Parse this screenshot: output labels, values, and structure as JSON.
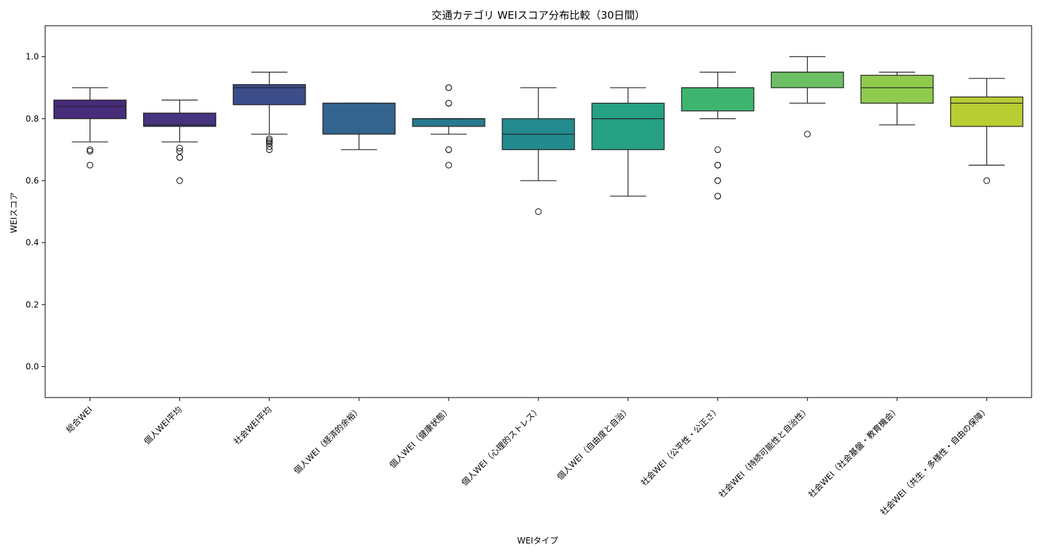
{
  "chart_data": {
    "type": "boxplot",
    "title": "交通カテゴリ WEIスコア分布比較（30日間）",
    "xlabel": "WEIタイプ",
    "ylabel": "WEIスコア",
    "ylim": [
      -0.1,
      1.1
    ],
    "yticks": [
      "0.0",
      "0.2",
      "0.4",
      "0.6",
      "0.8",
      "1.0"
    ],
    "grid": false,
    "legend": "none",
    "categories": [
      "総合WEI",
      "個人WEI平均",
      "社会WEI平均",
      "個人WEI（経済的余裕）",
      "個人WEI（健康状態）",
      "個人WEI（心理的ストレス）",
      "個人WEI（自由度と自治）",
      "社会WEI（公平性・公正さ）",
      "社会WEI（持続可能性と自治性）",
      "社会WEI（社会基盤・教育機会）",
      "社会WEI（共生・多様性・自由の保障）"
    ],
    "boxes": [
      {
        "color": "#472c7a",
        "whisker_low": 0.725,
        "q1": 0.8,
        "median": 0.84,
        "q3": 0.86,
        "whisker_high": 0.9,
        "outliers": [
          0.7,
          0.695,
          0.65
        ]
      },
      {
        "color": "#463480",
        "whisker_low": 0.725,
        "q1": 0.775,
        "median": 0.78,
        "q3": 0.818,
        "whisker_high": 0.86,
        "outliers": [
          0.705,
          0.695,
          0.675,
          0.675,
          0.6
        ]
      },
      {
        "color": "#3d4d8a",
        "whisker_low": 0.75,
        "q1": 0.845,
        "median": 0.9,
        "q3": 0.91,
        "whisker_high": 0.95,
        "outliers": [
          0.735,
          0.73,
          0.725,
          0.72,
          0.71,
          0.7
        ]
      },
      {
        "color": "#33648d",
        "whisker_low": 0.7,
        "q1": 0.75,
        "median": 0.85,
        "q3": 0.85,
        "whisker_high": 0.85,
        "outliers": []
      },
      {
        "color": "#297a8e",
        "whisker_low": 0.75,
        "q1": 0.775,
        "median": 0.8,
        "q3": 0.8,
        "whisker_high": 0.8,
        "outliers": [
          0.9,
          0.9,
          0.85,
          0.85,
          0.7,
          0.7,
          0.65
        ]
      },
      {
        "color": "#238a8d",
        "whisker_low": 0.6,
        "q1": 0.7,
        "median": 0.75,
        "q3": 0.8,
        "whisker_high": 0.9,
        "outliers": [
          0.5
        ]
      },
      {
        "color": "#26a184",
        "whisker_low": 0.55,
        "q1": 0.7,
        "median": 0.8,
        "q3": 0.85,
        "whisker_high": 0.9,
        "outliers": []
      },
      {
        "color": "#3db46f",
        "whisker_low": 0.8,
        "q1": 0.825,
        "median": 0.9,
        "q3": 0.9,
        "whisker_high": 0.95,
        "outliers": [
          0.7,
          0.65,
          0.65,
          0.6,
          0.6,
          0.55,
          0.55
        ]
      },
      {
        "color": "#6cc063",
        "whisker_low": 0.85,
        "q1": 0.9,
        "median": 0.95,
        "q3": 0.95,
        "whisker_high": 1.0,
        "outliers": [
          0.75
        ]
      },
      {
        "color": "#8fcb4d",
        "whisker_low": 0.78,
        "q1": 0.85,
        "median": 0.9,
        "q3": 0.94,
        "whisker_high": 0.95,
        "outliers": []
      },
      {
        "color": "#b7cd32",
        "whisker_low": 0.65,
        "q1": 0.775,
        "median": 0.85,
        "q3": 0.87,
        "whisker_high": 0.93,
        "outliers": [
          0.6
        ]
      }
    ]
  }
}
